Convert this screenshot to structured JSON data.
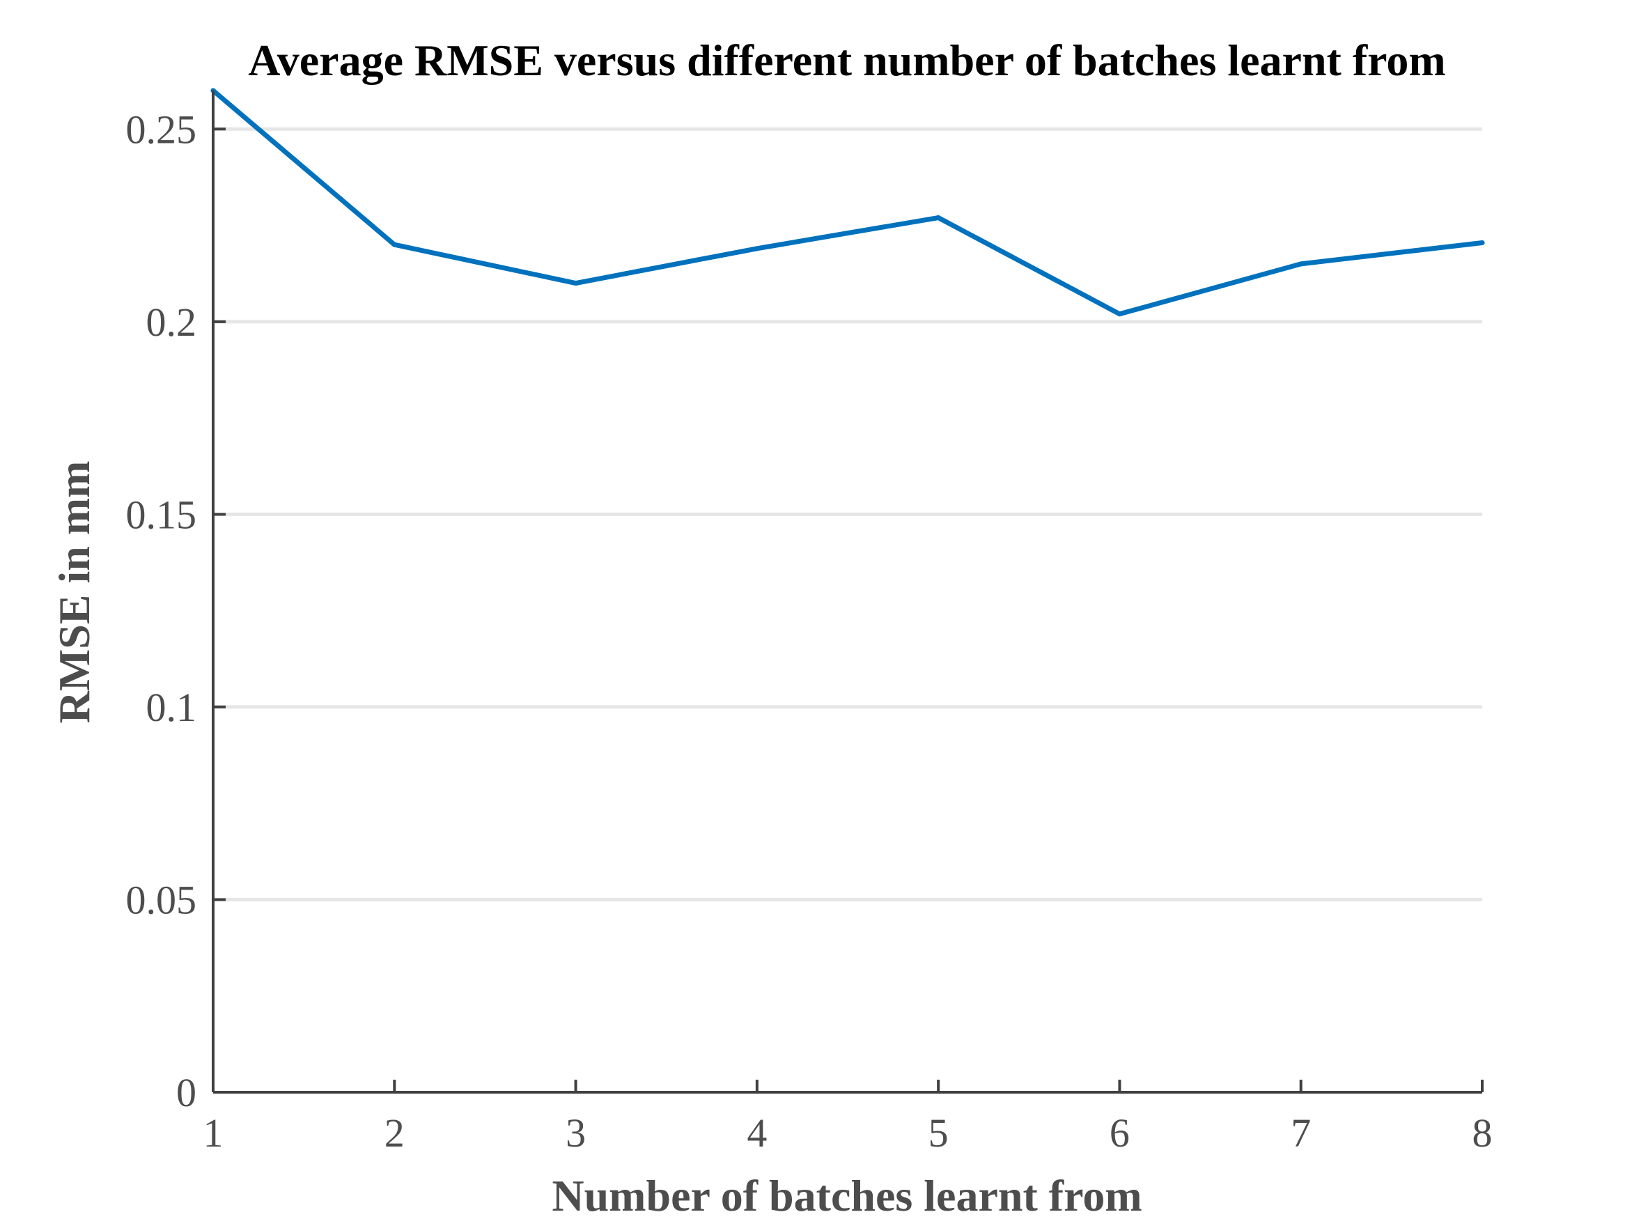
{
  "chart_data": {
    "type": "line",
    "title": "Average RMSE versus different number of batches learnt from",
    "xlabel": "Number of batches learnt from",
    "ylabel": "RMSE in mm",
    "x": [
      1,
      2,
      3,
      4,
      5,
      6,
      7,
      8
    ],
    "series": [
      {
        "values": [
          0.26,
          0.22,
          0.21,
          0.219,
          0.227,
          0.202,
          0.215,
          0.2205
        ],
        "color": "#0072bd"
      }
    ],
    "xlim": [
      1,
      8
    ],
    "ylim": [
      0,
      0.26
    ],
    "xticks": [
      "1",
      "2",
      "3",
      "4",
      "5",
      "6",
      "7",
      "8"
    ],
    "yticks": [
      "0",
      "0.05",
      "0.1",
      "0.15",
      "0.2",
      "0.25"
    ],
    "ytick_values": [
      0,
      0.05,
      0.1,
      0.15,
      0.2,
      0.25
    ],
    "grid": "horizontal",
    "colors": {
      "axis": "#404040",
      "grid": "#e6e6e6",
      "text": "#4d4d4d",
      "title": "#000000"
    }
  }
}
